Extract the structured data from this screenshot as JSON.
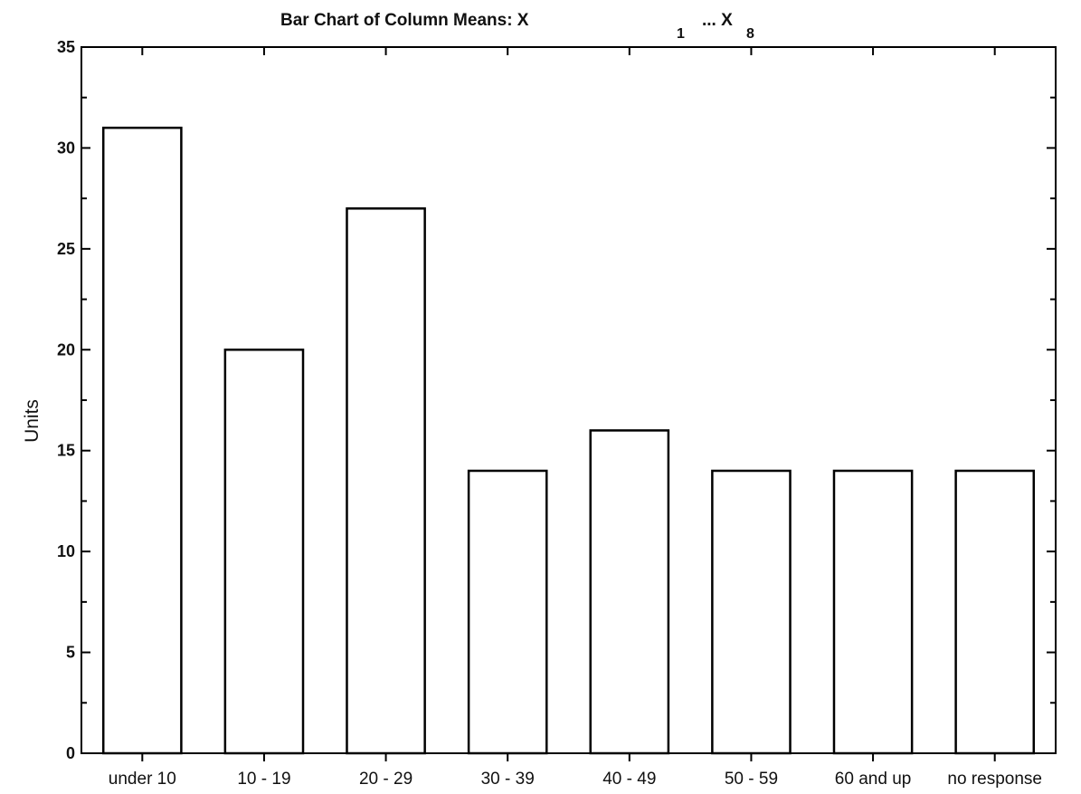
{
  "chart_data": {
    "type": "bar",
    "title": "Bar Chart of Column Means: X",
    "title_parts": [
      "1",
      "... X",
      "8"
    ],
    "ylabel": "Units",
    "xlabel": "",
    "categories": [
      "under 10",
      "10 - 19",
      "20 - 29",
      "30 - 39",
      "40 - 49",
      "50 - 59",
      "60 and up",
      "no response"
    ],
    "values": [
      31,
      20,
      27,
      14,
      16,
      14,
      14,
      14
    ],
    "ylim": [
      0,
      35
    ],
    "yticks": [
      "0",
      "5",
      "10",
      "15",
      "20",
      "25",
      "30",
      "35"
    ],
    "bar_fill": "#ffffff",
    "bar_stroke": "#000000",
    "grid": false,
    "legend": "none"
  }
}
